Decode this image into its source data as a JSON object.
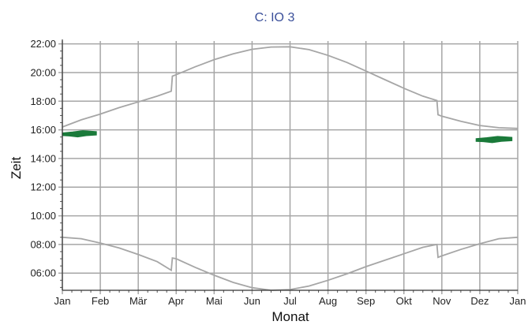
{
  "chart_data": {
    "type": "line",
    "title": "C: IO 3",
    "xlabel": "Monat",
    "ylabel": "Zeit",
    "x_tick_labels": [
      "Jan",
      "Feb",
      "Mär",
      "Apr",
      "Mai",
      "Jun",
      "Jul",
      "Aug",
      "Sep",
      "Okt",
      "Nov",
      "Dez",
      "Jan"
    ],
    "y_tick_labels": [
      "06:00",
      "08:00",
      "10:00",
      "12:00",
      "14:00",
      "16:00",
      "18:00",
      "20:00",
      "22:00"
    ],
    "x_range_months": [
      0,
      12
    ],
    "y_range_hours": [
      4.8,
      22.2
    ],
    "grid": true,
    "colors": {
      "boundary": "#a6a6a6",
      "shadow": "#1a7a3a",
      "grid": "#a6a6a6",
      "title": "#3a4f9a"
    },
    "series": [
      {
        "role": "sunset",
        "points": [
          [
            0,
            16.2
          ],
          [
            0.5,
            16.7
          ],
          [
            1,
            17.1
          ],
          [
            1.5,
            17.55
          ],
          [
            2,
            17.95
          ],
          [
            2.5,
            18.35
          ],
          [
            2.87,
            18.7
          ],
          [
            2.9,
            19.75
          ],
          [
            3,
            19.85
          ],
          [
            3.5,
            20.4
          ],
          [
            4,
            20.9
          ],
          [
            4.5,
            21.3
          ],
          [
            5,
            21.62
          ],
          [
            5.5,
            21.78
          ],
          [
            6,
            21.8
          ],
          [
            6.5,
            21.6
          ],
          [
            7,
            21.2
          ],
          [
            7.5,
            20.7
          ],
          [
            8,
            20.1
          ],
          [
            8.5,
            19.5
          ],
          [
            9,
            18.9
          ],
          [
            9.5,
            18.35
          ],
          [
            9.87,
            18.05
          ],
          [
            9.9,
            17.05
          ],
          [
            10,
            16.95
          ],
          [
            10.5,
            16.6
          ],
          [
            11,
            16.3
          ],
          [
            11.5,
            16.15
          ],
          [
            12,
            16.1
          ]
        ]
      },
      {
        "role": "sunrise",
        "points": [
          [
            0,
            8.5
          ],
          [
            0.5,
            8.4
          ],
          [
            1,
            8.1
          ],
          [
            1.5,
            7.75
          ],
          [
            2,
            7.3
          ],
          [
            2.5,
            6.8
          ],
          [
            2.87,
            6.2
          ],
          [
            2.9,
            7.05
          ],
          [
            3,
            7.0
          ],
          [
            3.5,
            6.4
          ],
          [
            4,
            5.85
          ],
          [
            4.5,
            5.35
          ],
          [
            5,
            4.98
          ],
          [
            5.5,
            4.8
          ],
          [
            6,
            4.85
          ],
          [
            6.5,
            5.1
          ],
          [
            7,
            5.5
          ],
          [
            7.5,
            5.95
          ],
          [
            8,
            6.45
          ],
          [
            8.5,
            6.9
          ],
          [
            9,
            7.35
          ],
          [
            9.5,
            7.8
          ],
          [
            9.87,
            8.0
          ],
          [
            9.9,
            7.1
          ],
          [
            10,
            7.2
          ],
          [
            10.5,
            7.65
          ],
          [
            11,
            8.05
          ],
          [
            11.5,
            8.4
          ],
          [
            12,
            8.5
          ]
        ]
      }
    ],
    "shadow_events": [
      {
        "x_start": 0.0,
        "x_end": 0.9,
        "y_low": 15.5,
        "y_high": 15.95
      },
      {
        "x_start": 10.9,
        "x_end": 11.85,
        "y_low": 15.1,
        "y_high": 15.55
      }
    ]
  }
}
